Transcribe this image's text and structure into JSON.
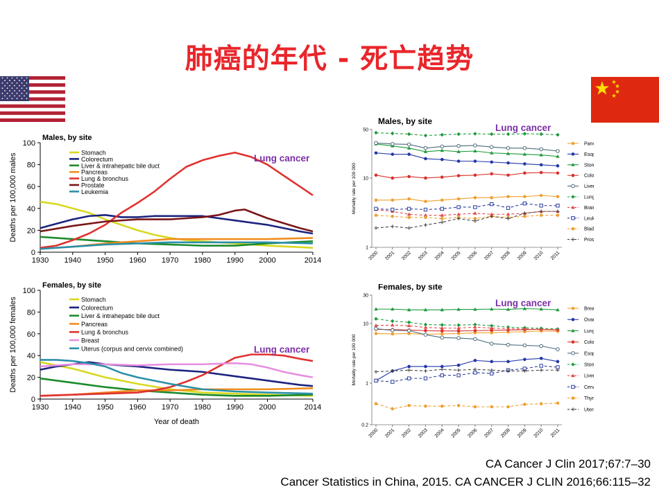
{
  "slide": {
    "title": "肺癌的年代 - 死亡趋势",
    "citation1": "CA Cancer J Clin 2017;67:7–30",
    "citation2": "Cancer Statistics in China, 2015. CA CANCER J CLIN 2016;66:115–32",
    "flag_us": "us-flag",
    "flag_cn": "china-flag",
    "highlight_label": "Lung cancer",
    "highlight_color": "#7b2fa6"
  },
  "chart_data": [
    {
      "id": "us-males",
      "type": "line",
      "title": "Males, by site",
      "ylabel": "Deaths per 100,000 males",
      "xlabel": "",
      "ylim": [
        0,
        100
      ],
      "xlim": [
        1930,
        2014
      ],
      "xticks": [
        1930,
        1940,
        1950,
        1960,
        1970,
        1980,
        1990,
        2000,
        2014
      ],
      "yticks": [
        0,
        20,
        40,
        60,
        80,
        100
      ],
      "annotation": "Lung cancer",
      "series": [
        {
          "name": "Stomach",
          "color": "#d8d820",
          "x": [
            1930,
            1935,
            1940,
            1945,
            1950,
            1955,
            1960,
            1965,
            1970,
            1975,
            1980,
            1990,
            2000,
            2014
          ],
          "y": [
            46,
            44,
            40,
            36,
            30,
            25,
            20,
            16,
            13,
            11,
            10,
            8,
            6,
            4
          ]
        },
        {
          "name": "Colorectum",
          "color": "#1a237e",
          "x": [
            1930,
            1935,
            1940,
            1945,
            1950,
            1955,
            1960,
            1965,
            1970,
            1975,
            1980,
            1985,
            1990,
            2000,
            2010,
            2014
          ],
          "y": [
            22,
            26,
            30,
            33,
            34,
            32,
            32,
            33,
            33,
            33,
            33,
            31,
            29,
            25,
            19,
            17
          ]
        },
        {
          "name": "Liver & intrahepatic bile duct",
          "color": "#1b8a2a",
          "x": [
            1930,
            1940,
            1950,
            1960,
            1970,
            1980,
            1990,
            2000,
            2014
          ],
          "y": [
            14,
            12,
            10,
            8,
            7,
            6,
            6,
            8,
            10
          ]
        },
        {
          "name": "Pancreas",
          "color": "#f08c1e",
          "x": [
            1930,
            1940,
            1950,
            1960,
            1970,
            1980,
            1990,
            2000,
            2014
          ],
          "y": [
            3,
            5,
            8,
            10,
            12,
            12,
            12,
            12,
            13
          ]
        },
        {
          "name": "Lung & bronchus",
          "color": "#e0312f",
          "x": [
            1930,
            1935,
            1940,
            1945,
            1950,
            1955,
            1960,
            1965,
            1970,
            1975,
            1980,
            1985,
            1990,
            1995,
            2000,
            2005,
            2010,
            2014
          ],
          "y": [
            4,
            6,
            11,
            17,
            25,
            36,
            45,
            55,
            67,
            78,
            84,
            88,
            91,
            87,
            80,
            70,
            60,
            52
          ]
        },
        {
          "name": "Prostate",
          "color": "#7a1518",
          "x": [
            1930,
            1940,
            1950,
            1960,
            1970,
            1980,
            1985,
            1990,
            1993,
            2000,
            2010,
            2014
          ],
          "y": [
            19,
            24,
            28,
            30,
            30,
            32,
            34,
            38,
            39,
            31,
            22,
            19
          ]
        },
        {
          "name": "Leukemia",
          "color": "#2a8fa8",
          "x": [
            1930,
            1940,
            1950,
            1960,
            1970,
            1980,
            1990,
            2000,
            2014
          ],
          "y": [
            3,
            5,
            7,
            8,
            9,
            9,
            9,
            9,
            8
          ]
        }
      ]
    },
    {
      "id": "us-females",
      "type": "line",
      "title": "Females, by site",
      "ylabel": "Deaths per 100,000 females",
      "xlabel": "Year of death",
      "ylim": [
        0,
        100
      ],
      "xlim": [
        1930,
        2014
      ],
      "xticks": [
        1930,
        1940,
        1950,
        1960,
        1970,
        1980,
        1990,
        2000,
        2014
      ],
      "yticks": [
        0,
        20,
        40,
        60,
        80,
        100
      ],
      "annotation": "Lung cancer",
      "series": [
        {
          "name": "Stomach",
          "color": "#d8d820",
          "x": [
            1930,
            1940,
            1950,
            1960,
            1970,
            1980,
            1990,
            2000,
            2014
          ],
          "y": [
            34,
            28,
            20,
            14,
            9,
            6,
            5,
            4,
            3
          ]
        },
        {
          "name": "Colorectum",
          "color": "#1a237e",
          "x": [
            1930,
            1935,
            1940,
            1945,
            1950,
            1960,
            1970,
            1980,
            1990,
            2000,
            2010,
            2014
          ],
          "y": [
            27,
            30,
            32,
            34,
            32,
            30,
            27,
            25,
            21,
            17,
            13,
            12
          ]
        },
        {
          "name": "Liver & intrahepatic bile duct",
          "color": "#1b8a2a",
          "x": [
            1930,
            1940,
            1950,
            1960,
            1970,
            1980,
            1990,
            2000,
            2014
          ],
          "y": [
            19,
            15,
            11,
            8,
            6,
            4,
            3,
            3,
            4
          ]
        },
        {
          "name": "Pancreas",
          "color": "#f08c1e",
          "x": [
            1930,
            1940,
            1950,
            1960,
            1970,
            1980,
            1990,
            2000,
            2014
          ],
          "y": [
            3,
            4,
            6,
            8,
            8,
            9,
            9,
            9,
            10
          ]
        },
        {
          "name": "Lung & bronchus",
          "color": "#e0312f",
          "x": [
            1930,
            1940,
            1950,
            1960,
            1965,
            1970,
            1975,
            1980,
            1985,
            1990,
            1995,
            2000,
            2005,
            2010,
            2014
          ],
          "y": [
            3,
            4,
            5,
            6,
            8,
            11,
            16,
            22,
            30,
            38,
            41,
            41,
            40,
            37,
            35
          ]
        },
        {
          "name": "Breast",
          "color": "#e68fe0",
          "x": [
            1930,
            1940,
            1950,
            1960,
            1970,
            1980,
            1990,
            1995,
            2000,
            2005,
            2010,
            2014
          ],
          "y": [
            30,
            32,
            32,
            31,
            32,
            32,
            33,
            32,
            29,
            25,
            22,
            20
          ]
        },
        {
          "name": "Uterus (corpus and cervix combined)",
          "color": "#2a8fa8",
          "x": [
            1930,
            1935,
            1940,
            1945,
            1950,
            1955,
            1960,
            1970,
            1980,
            1990,
            2000,
            2014
          ],
          "y": [
            36,
            36,
            35,
            33,
            30,
            24,
            20,
            14,
            9,
            7,
            6,
            5
          ]
        }
      ]
    },
    {
      "id": "cn-males",
      "type": "line",
      "title": "Males, by site",
      "ylabel": "Mortality rate per 100 000",
      "yscale": "log",
      "ylim": [
        1,
        50
      ],
      "yticks": [
        1,
        10,
        50
      ],
      "categories": [
        "2000",
        "2001",
        "2002",
        "2003",
        "2004",
        "2005",
        "2006",
        "2007",
        "2008",
        "2009",
        "2010",
        "2011"
      ],
      "annotation": "Lung cancer",
      "series": [
        {
          "name": "Pancreas",
          "color": "#f0a030",
          "marker": "circle",
          "dash": false,
          "values": [
            4.8,
            4.8,
            5.0,
            4.6,
            4.8,
            5.0,
            5.2,
            5.2,
            5.4,
            5.4,
            5.6,
            5.4
          ]
        },
        {
          "name": "Esophagus",
          "color": "#2236a8",
          "marker": "circle",
          "dash": false,
          "values": [
            23,
            22,
            22,
            19,
            18.5,
            17.5,
            17.5,
            17,
            16.5,
            16,
            15.5,
            15
          ]
        },
        {
          "name": "Stomach",
          "color": "#1b9a3a",
          "marker": "triangle",
          "dash": false,
          "values": [
            31,
            29,
            27,
            24,
            25,
            24,
            24.5,
            23,
            22.5,
            22,
            21.5,
            20.5
          ]
        },
        {
          "name": "Colorectum",
          "color": "#d8302a",
          "marker": "circle",
          "dash": false,
          "values": [
            11,
            10,
            10.5,
            10,
            10.3,
            10.8,
            11,
            11.5,
            11,
            11.8,
            12,
            11.8
          ]
        },
        {
          "name": "Liver",
          "color": "#4a6a7a",
          "marker": "circle-open",
          "dash": false,
          "values": [
            32,
            31,
            30.5,
            27,
            28.5,
            29,
            29.5,
            28,
            27,
            27,
            26,
            24.5
          ]
        },
        {
          "name": "Lung",
          "color": "#1b9a3a",
          "marker": "diamond",
          "dash": true,
          "values": [
            45,
            44,
            43,
            41,
            42,
            43,
            43.5,
            43,
            43,
            43.5,
            43,
            42
          ]
        },
        {
          "name": "Brain, CNS",
          "color": "#e04a4a",
          "marker": "triangle",
          "dash": true,
          "values": [
            3.5,
            3.3,
            3.0,
            2.9,
            2.9,
            3.0,
            3.1,
            3.0,
            3.0,
            3.1,
            3.3,
            3.3
          ]
        },
        {
          "name": "Leukemia",
          "color": "#2a3a9a",
          "marker": "square-open",
          "dash": true,
          "values": [
            3.6,
            3.5,
            3.6,
            3.5,
            3.6,
            3.8,
            3.8,
            4.2,
            3.7,
            4.3,
            4.0,
            4.0
          ]
        },
        {
          "name": "Bladder",
          "color": "#f0a030",
          "marker": "circle",
          "dash": true,
          "values": [
            2.9,
            2.8,
            2.7,
            2.7,
            2.6,
            2.7,
            2.6,
            2.8,
            2.7,
            2.8,
            2.9,
            2.9
          ]
        },
        {
          "name": "Prostate",
          "color": "#444444",
          "marker": "plus",
          "dash": true,
          "values": [
            1.9,
            2.0,
            1.9,
            2.1,
            2.3,
            2.6,
            2.4,
            2.8,
            2.6,
            3.1,
            3.3,
            3.3
          ]
        }
      ]
    },
    {
      "id": "cn-females",
      "type": "line",
      "title": "Females, by site",
      "ylabel": "Mortality rate per 100 000",
      "yscale": "log",
      "ylim": [
        0.2,
        30
      ],
      "yticks": [
        0.2,
        1,
        10,
        30
      ],
      "categories": [
        "2000",
        "2001",
        "2002",
        "2003",
        "2004",
        "2005",
        "2006",
        "2007",
        "2008",
        "2009",
        "2010",
        "2011"
      ],
      "annotation": "Lung cancer",
      "series": [
        {
          "name": "Breast",
          "color": "#f0a030",
          "marker": "circle",
          "dash": false,
          "values": [
            6.8,
            6.7,
            6.8,
            6.6,
            6.7,
            6.8,
            7.0,
            7.0,
            7.2,
            7.3,
            7.5,
            7.4
          ]
        },
        {
          "name": "Ovary",
          "color": "#2236a8",
          "marker": "circle",
          "dash": false,
          "values": [
            1.1,
            1.6,
            1.9,
            1.9,
            1.9,
            2.0,
            2.4,
            2.3,
            2.3,
            2.5,
            2.6,
            2.3
          ]
        },
        {
          "name": "Lung",
          "color": "#1b9a3a",
          "marker": "triangle",
          "dash": false,
          "values": [
            17.5,
            17.5,
            17,
            17,
            17,
            17.3,
            17.3,
            17.5,
            17.3,
            17.8,
            17.5,
            17
          ]
        },
        {
          "name": "Colorectum",
          "color": "#d8302a",
          "marker": "circle",
          "dash": false,
          "values": [
            8.0,
            7.9,
            7.8,
            7.6,
            7.5,
            7.5,
            7.6,
            7.7,
            7.8,
            7.9,
            8.0,
            7.8
          ]
        },
        {
          "name": "Esophagus",
          "color": "#4a6a7a",
          "marker": "circle-open",
          "dash": false,
          "values": [
            8.2,
            7.7,
            7.6,
            6.5,
            5.8,
            5.7,
            5.5,
            4.6,
            4.4,
            4.3,
            4.2,
            3.7
          ]
        },
        {
          "name": "Stomach",
          "color": "#1b9a3a",
          "marker": "diamond",
          "dash": true,
          "values": [
            12,
            11,
            10.5,
            9.6,
            9.5,
            9.4,
            9.6,
            9.2,
            8.7,
            8.5,
            8.3,
            8.1
          ]
        },
        {
          "name": "Liver",
          "color": "#e04a4a",
          "marker": "triangle",
          "dash": true,
          "values": [
            9.3,
            9.4,
            9.2,
            8.6,
            8.4,
            8.4,
            8.7,
            8.4,
            8.2,
            8.1,
            8.0,
            7.9
          ]
        },
        {
          "name": "Cervix",
          "color": "#2a3a9a",
          "marker": "square-open",
          "dash": true,
          "values": [
            1.1,
            1.05,
            1.2,
            1.2,
            1.35,
            1.35,
            1.5,
            1.45,
            1.65,
            1.75,
            1.95,
            1.85
          ]
        },
        {
          "name": "Thyroid",
          "color": "#f0a030",
          "marker": "circle",
          "dash": true,
          "values": [
            0.45,
            0.37,
            0.42,
            0.41,
            0.41,
            0.42,
            0.4,
            0.4,
            0.4,
            0.44,
            0.45,
            0.46
          ]
        },
        {
          "name": "Uterus",
          "color": "#444444",
          "marker": "plus",
          "dash": true,
          "values": [
            1.55,
            1.6,
            1.65,
            1.6,
            1.7,
            1.65,
            1.7,
            1.65,
            1.6,
            1.6,
            1.65,
            1.65
          ]
        }
      ]
    }
  ]
}
